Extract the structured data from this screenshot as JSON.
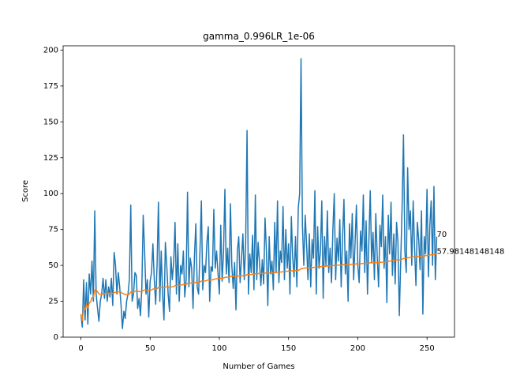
{
  "chart_data": {
    "type": "line",
    "title": "gamma_0.996LR_1e-06",
    "x_label": "Number of Games",
    "y_label": "Score",
    "xlim": [
      -12.85,
      269.85
    ],
    "ylim": [
      0,
      203
    ],
    "xticks": [
      0,
      50,
      100,
      150,
      200,
      250
    ],
    "yticks": [
      0,
      25,
      50,
      75,
      100,
      125,
      150,
      175,
      200
    ],
    "series": [
      {
        "color": "#1f77b4",
        "values": [
          16,
          7,
          40,
          12,
          38,
          9,
          44,
          30,
          53,
          25,
          88,
          30,
          20,
          11,
          25,
          30,
          41,
          27,
          40,
          25,
          35,
          28,
          41,
          22,
          59,
          50,
          30,
          45,
          35,
          22,
          6,
          18,
          13,
          25,
          30,
          40,
          92,
          25,
          30,
          45,
          43,
          20,
          27,
          15,
          34,
          85,
          60,
          30,
          40,
          14,
          39,
          45,
          65,
          40,
          23,
          50,
          94,
          25,
          60,
          30,
          12,
          66,
          50,
          30,
          18,
          56,
          40,
          52,
          80,
          30,
          65,
          25,
          50,
          44,
          60,
          28,
          40,
          101,
          35,
          55,
          48,
          20,
          56,
          79,
          35,
          30,
          60,
          95,
          33,
          50,
          45,
          66,
          77,
          25,
          49,
          46,
          89,
          48,
          60,
          45,
          30,
          78,
          39,
          59,
          103,
          44,
          62,
          38,
          93,
          50,
          34,
          52,
          19,
          60,
          70,
          38,
          55,
          72,
          40,
          65,
          144,
          30,
          58,
          45,
          71,
          33,
          99,
          40,
          66,
          52,
          36,
          54,
          37,
          83,
          60,
          22,
          70,
          44,
          53,
          33,
          80,
          45,
          95,
          38,
          60,
          52,
          91,
          40,
          75,
          48,
          65,
          30,
          84,
          55,
          42,
          70,
          35,
          90,
          100,
          194,
          78,
          50,
          85,
          65,
          40,
          72,
          35,
          68,
          55,
          102,
          30,
          77,
          48,
          60,
          95,
          27,
          70,
          50,
          88,
          45,
          62,
          38,
          75,
          100,
          40,
          69,
          53,
          82,
          35,
          70,
          96,
          44,
          60,
          25,
          79,
          55,
          86,
          40,
          65,
          92,
          50,
          38,
          74,
          60,
          99,
          45,
          81,
          30,
          67,
          102,
          52,
          73,
          40,
          86,
          57,
          35,
          78,
          63,
          99,
          48,
          70,
          24,
          85,
          58,
          94,
          43,
          72,
          37,
          80,
          66,
          15,
          53,
          90,
          141,
          60,
          45,
          118,
          75,
          88,
          50,
          95,
          62,
          36,
          80,
          68,
          47,
          88,
          16,
          70,
          58,
          103,
          42,
          77,
          95,
          50,
          105,
          40,
          70
        ]
      },
      {
        "color": "#ff7f0e",
        "values": [
          16,
          11.5,
          21,
          19,
          22.6,
          20.3,
          23.7,
          24.5,
          27.7,
          27.4,
          32.9,
          32.7,
          31.7,
          30.1,
          29.7,
          29.7,
          30.4,
          30.2,
          30.7,
          30.4,
          30.7,
          30.6,
          30.7,
          30.4,
          31.0,
          31.3,
          31.3,
          31.5,
          31.6,
          31.3,
          30.5,
          30.2,
          29.7,
          29.6,
          29.6,
          29.9,
          31.6,
          31.5,
          31.5,
          31.8,
          32.1,
          32.0,
          31.9,
          31.6,
          31.7,
          32.5,
          32.9,
          32.9,
          33.0,
          32.6,
          32.7,
          32.9,
          33.5,
          33.6,
          33.4,
          33.7,
          34.7,
          34.5,
          34.9,
          34.8,
          34.4,
          34.9,
          35.1,
          35.0,
          34.7,
          35.0,
          35.1,
          35.3,
          36.0,
          35.9,
          36.3,
          36.1,
          36.3,
          36.4,
          36.7,
          36.5,
          36.6,
          37.5,
          37.5,
          37.7,
          37.8,
          37.5,
          37.8,
          38.3,
          38.2,
          38.1,
          38.4,
          39.1,
          39.0,
          39.1,
          39.2,
          39.5,
          39.9,
          39.7,
          39.8,
          39.9,
          40.4,
          40.5,
          40.7,
          40.7,
          40.6,
          41.0,
          40.9,
          41.1,
          41.7,
          41.7,
          41.9,
          41.9,
          42.3,
          42.4,
          42.3,
          42.4,
          42.2,
          42.4,
          42.6,
          42.5,
          42.6,
          42.8,
          42.7,
          42.9,
          43.7,
          43.6,
          43.7,
          43.7,
          43.9,
          43.8,
          44.2,
          44.1,
          44.3,
          44.4,
          44.3,
          44.4,
          44.3,
          44.6,
          44.7,
          44.5,
          44.7,
          44.7,
          44.8,
          44.7,
          45.0,
          45.0,
          45.3,
          45.3,
          45.4,
          45.4,
          45.7,
          45.7,
          45.9,
          45.9,
          46.0,
          45.9,
          46.2,
          46.2,
          46.2,
          46.4,
          46.3,
          46.6,
          46.9,
          47.8,
          48.0,
          48.0,
          48.2,
          48.3,
          48.3,
          48.4,
          48.3,
          48.5,
          48.5,
          48.8,
          48.7,
          48.9,
          48.9,
          49.0,
          49.3,
          49.2,
          49.4,
          49.4,
          49.6,
          49.6,
          49.7,
          49.6,
          49.8,
          50.1,
          50.0,
          50.1,
          50.1,
          50.3,
          50.2,
          50.3,
          50.6,
          50.5,
          50.6,
          50.5,
          50.6,
          50.7,
          50.9,
          50.8,
          50.9,
          51.1,
          51.1,
          51.0,
          51.2,
          51.2,
          51.4,
          51.4,
          51.5,
          51.4,
          51.5,
          51.8,
          51.8,
          51.9,
          51.8,
          52.0,
          52.0,
          51.9,
          52.1,
          52.1,
          52.3,
          52.3,
          52.6,
          52.5,
          52.8,
          52.9,
          53.2,
          53.2,
          53.5,
          53.5,
          53.8,
          54.0,
          53.8,
          54.0,
          54.3,
          54.8,
          54.9,
          55.0,
          55.3,
          55.4,
          55.6,
          55.6,
          55.9,
          56.0,
          56.0,
          56.2,
          56.3,
          56.3,
          56.6,
          56.4,
          56.6,
          56.7,
          57.0,
          57.0,
          57.2,
          57.4,
          57.4,
          57.7,
          57.7,
          57.98148148148148
        ]
      }
    ],
    "annotations": [
      {
        "x": 257,
        "y": 70,
        "label": "70"
      },
      {
        "x": 257,
        "y": 57.98148148148148,
        "label": "57.98148148148148"
      }
    ]
  }
}
